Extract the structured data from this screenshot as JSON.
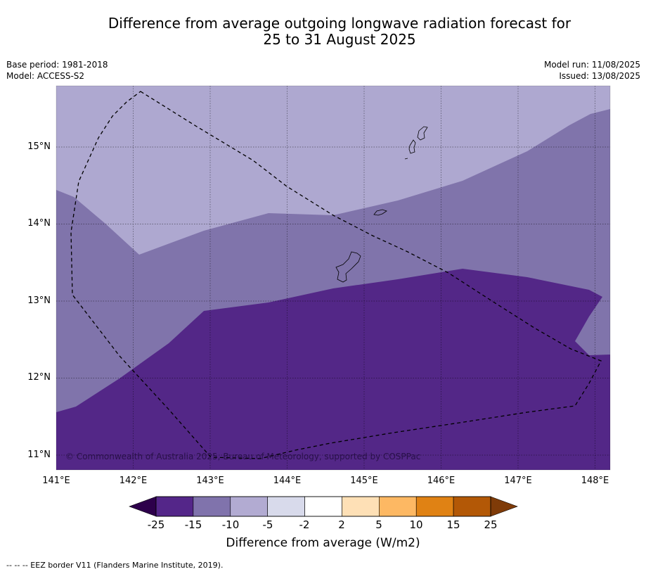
{
  "title_line1": "Difference from average outgoing longwave radiation forecast for",
  "title_line2": "25 to 31 August 2025",
  "base_period": "Base period: 1981-2018",
  "model": "Model: ACCESS-S2",
  "model_run": "Model run: 11/08/2025",
  "issued": "Issued: 13/08/2025",
  "copyright": "© Commonwealth of Australia 2025, Bureau of Meteorology, supported by COSPPac",
  "lon_labels": [
    "141°E",
    "142°E",
    "143°E",
    "144°E",
    "145°E",
    "146°E",
    "147°E",
    "148°E"
  ],
  "lat_labels": [
    "15°N",
    "14°N",
    "13°N",
    "12°N",
    "11°N"
  ],
  "colorbar": {
    "ticks": [
      "-25",
      "-15",
      "-10",
      "-5",
      "-2",
      "2",
      "5",
      "10",
      "15",
      "25"
    ],
    "colors": [
      "#542689",
      "#8073ac",
      "#b2abd2",
      "#d8daeb",
      "#ffffff",
      "#fee0b6",
      "#fdb863",
      "#e08214",
      "#b35806"
    ],
    "under_color": "#2d004b",
    "over_color": "#7f3b08",
    "title": "Difference from average (W/m2)"
  },
  "legend_note": "--  --  -- EEZ border V11 (Flanders Marine Institute, 2019).",
  "map_colors": {
    "band_minus5_minus10": "#aea8d0",
    "band_minus10_minus15": "#8074ab",
    "band_minus15_minus25": "#532787",
    "land_outline": "#000000",
    "eez_border": "#000000"
  }
}
